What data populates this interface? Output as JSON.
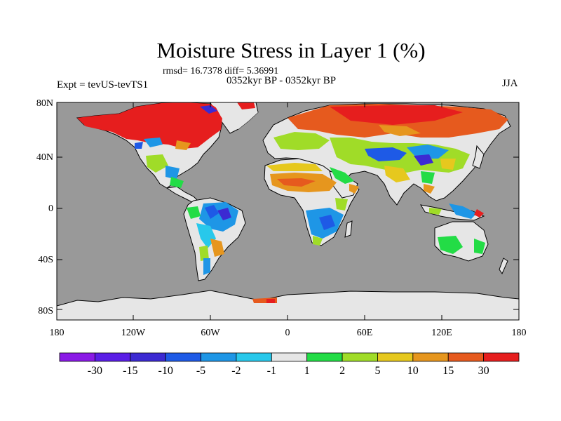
{
  "title": "Moisture Stress in Layer 1 (%)",
  "stats_line": "rmsd= 16.7378 diff= 5.36991",
  "period_line": "0352kyr BP - 0352kyr BP",
  "experiment_line": "Expt = tevUS-tevTS1",
  "season": "JJA",
  "axes": {
    "y_ticks": [
      "80N",
      "40N",
      "0",
      "40S",
      "80S"
    ],
    "x_ticks": [
      "180",
      "120W",
      "60W",
      "0",
      "60E",
      "120E",
      "180"
    ]
  },
  "colorbar": {
    "labels": [
      "-30",
      "-15",
      "-10",
      "-5",
      "-2",
      "-1",
      "1",
      "2",
      "5",
      "10",
      "15",
      "30"
    ],
    "colors": [
      "#8a1ae6",
      "#5a1ee6",
      "#3c2ad2",
      "#1e5ae6",
      "#1e96e6",
      "#28c8eb",
      "#e6e6e6",
      "#23dc46",
      "#a0dc28",
      "#e6c81e",
      "#e6961e",
      "#e65a1e",
      "#e61e1e"
    ]
  },
  "colors": {
    "ocean": "#999999",
    "land": "#e6e6e6",
    "coast": "#000000"
  }
}
